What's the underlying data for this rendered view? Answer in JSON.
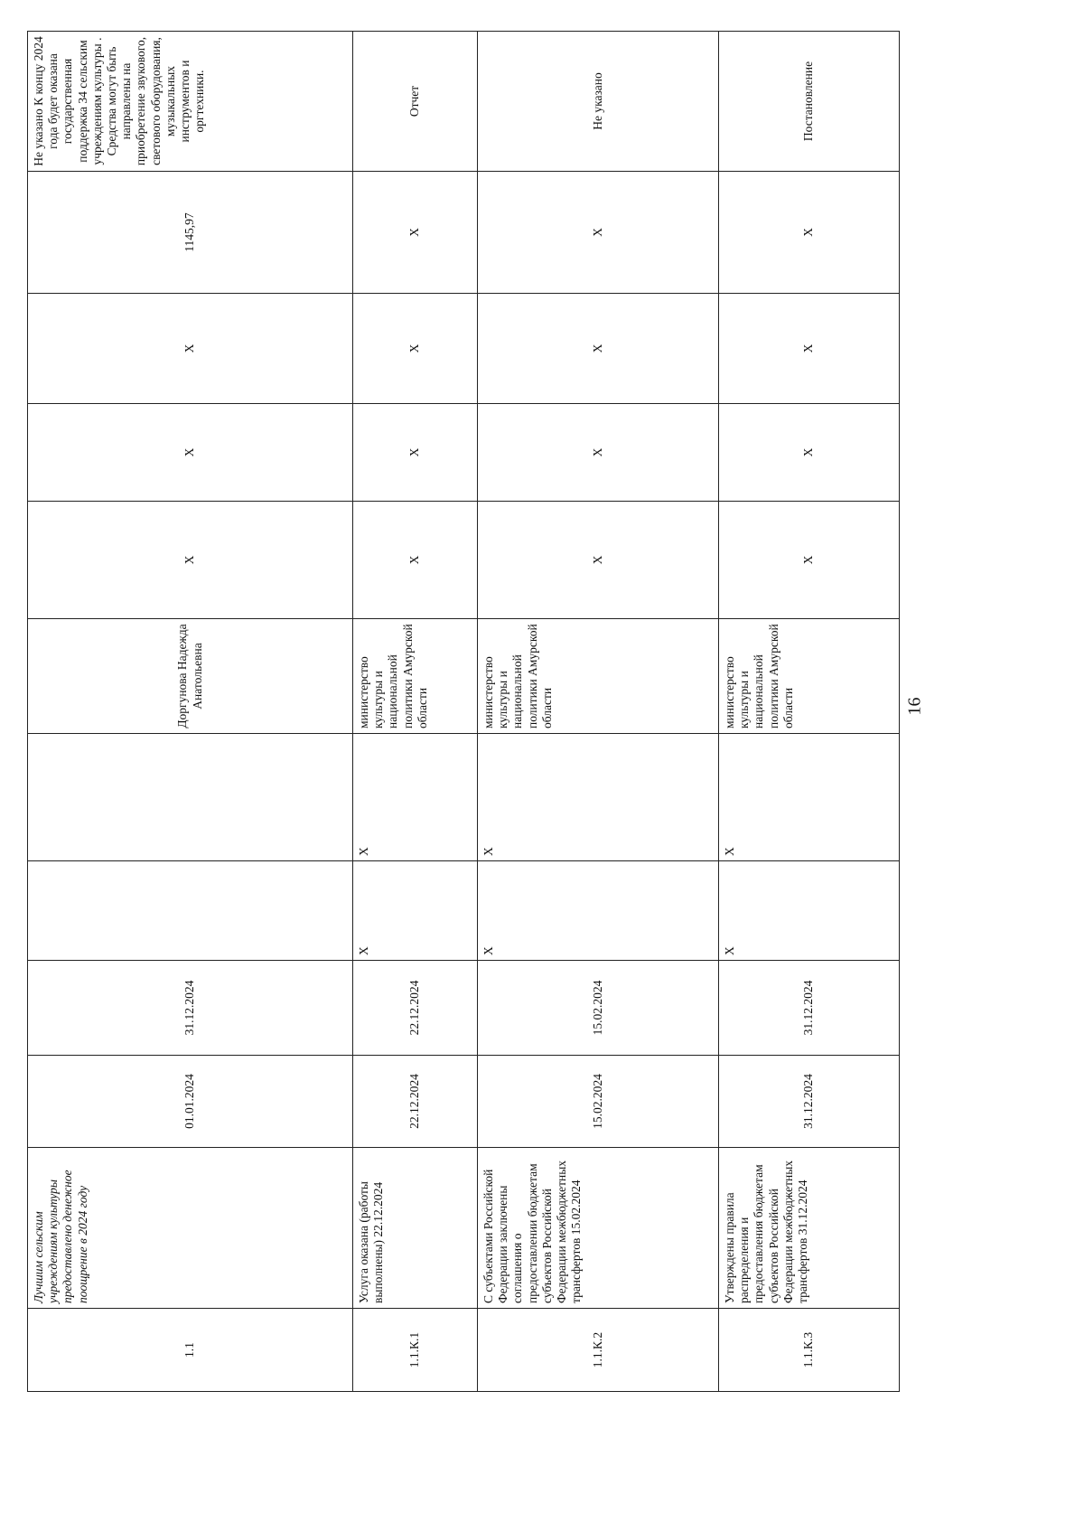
{
  "page_number": "16",
  "table": {
    "rows": [
      [
        "1.1",
        "Лучшим сельским учреждениям культуры предоставлено денежное поощрение в 2024 году",
        "01.01.2024",
        "31.12.2024",
        null,
        null,
        "Доргунова Надежда Анатольевна",
        "X",
        "X",
        "X",
        "1145,97",
        "Не указано К концу 2024 года будет оказана государственная поддержка 34 сельским учреждениям культуры . Средства могут быть направлены на приобретение звукового, светового оборудования, музыкальных инструментов и оргтехники."
      ],
      [
        "1.1.К.1",
        "Услуга оказана (работы выполнены) 22.12.2024",
        "22.12.2024",
        "22.12.2024",
        "X",
        "X",
        "министерство культуры и национальной политики Амурской области",
        "X",
        "X",
        "X",
        "X",
        "Отчет"
      ],
      [
        "1.1.К.2",
        "С субъектами Российской Федерации заключены соглашения о предоставлении бюджетам субъектов Российской Федерации межбюджетных трансфертов 15.02.2024",
        "15.02.2024",
        "15.02.2024",
        "X",
        "X",
        "министерство культуры и национальной политики Амурской области",
        "X",
        "X",
        "X",
        "X",
        "Не указано"
      ],
      [
        "1.1.К.3",
        "Утверждены правила распределения и предоставления бюджетам субъектов Российской Федерации межбюджетных трансфертов 31.12.2024",
        "31.12.2024",
        "31.12.2024",
        "X",
        "X",
        "министерство культуры и национальной политики Амурской области",
        "X",
        "X",
        "X",
        "X",
        "Постановление"
      ]
    ]
  }
}
